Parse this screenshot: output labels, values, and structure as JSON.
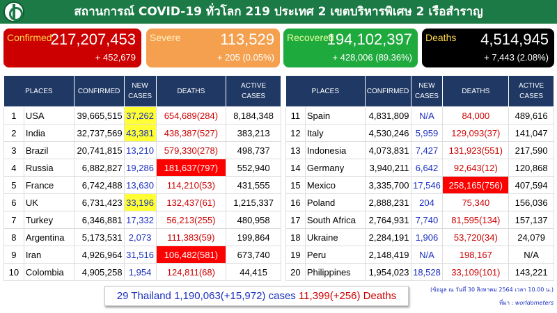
{
  "header": {
    "title": "สถานการณ์ COVID-19 ทั่วโลก 219 ประเทศ 2 เขตบริหารพิเศษ 2 เรือสำราญ"
  },
  "summary": {
    "confirmed": {
      "label": "Confirmed",
      "total": "217,207,453",
      "change": "+ 452,679"
    },
    "severe": {
      "label": "Severe",
      "total": "113,529",
      "change": "+ 205 (0.05%)"
    },
    "recovered": {
      "label": "Recovered",
      "total": "194,102,397",
      "change": "+ 428,006 (89.36%)"
    },
    "deaths": {
      "label": "Deaths",
      "total": "4,514,945",
      "change": "+ 7,443 (2.08%)"
    }
  },
  "table": {
    "headers": {
      "places": "PLACES",
      "confirmed": "CONFIRMED",
      "new_line1": "NEW",
      "new_line2": "CASES",
      "deaths": "DEATHS",
      "active_line1": "ACTIVE",
      "active_line2": "CASES"
    },
    "left": [
      {
        "rank": "1",
        "place": "USA",
        "confirmed": "39,665,515",
        "new": "37,262",
        "deaths": "654,689(284)",
        "active": "8,184,348"
      },
      {
        "rank": "2",
        "place": "India",
        "confirmed": "32,737,569",
        "new": "43,381",
        "deaths": "438,387(527)",
        "active": "383,213"
      },
      {
        "rank": "3",
        "place": "Brazil",
        "confirmed": "20,741,815",
        "new": "13,210",
        "deaths": "579,330(278)",
        "active": "498,737"
      },
      {
        "rank": "4",
        "place": "Russia",
        "confirmed": "6,882,827",
        "new": "19,286",
        "deaths": "181,637(797)",
        "active": "552,940"
      },
      {
        "rank": "5",
        "place": "France",
        "confirmed": "6,742,488",
        "new": "13,630",
        "deaths": "114,210(53)",
        "active": "431,555"
      },
      {
        "rank": "6",
        "place": "UK",
        "confirmed": "6,731,423",
        "new": "33,196",
        "deaths": "132,437(61)",
        "active": "1,215,337"
      },
      {
        "rank": "7",
        "place": "Turkey",
        "confirmed": "6,346,881",
        "new": "17,332",
        "deaths": "56,213(255)",
        "active": "480,958"
      },
      {
        "rank": "8",
        "place": "Argentina",
        "confirmed": "5,173,531",
        "new": "2,073",
        "deaths": "111,383(59)",
        "active": "199,864"
      },
      {
        "rank": "9",
        "place": "Iran",
        "confirmed": "4,926,964",
        "new": "31,516",
        "deaths": "106,482(581)",
        "active": "673,740"
      },
      {
        "rank": "10",
        "place": "Colombia",
        "confirmed": "4,905,258",
        "new": "1,954",
        "deaths": "124,811(68)",
        "active": "44,415"
      }
    ],
    "right": [
      {
        "rank": "11",
        "place": "Spain",
        "confirmed": "4,831,809",
        "new": "N/A",
        "deaths": "84,000",
        "active": "489,616"
      },
      {
        "rank": "12",
        "place": "Italy",
        "confirmed": "4,530,246",
        "new": "5,959",
        "deaths": "129,093(37)",
        "active": "141,047"
      },
      {
        "rank": "13",
        "place": "Indonesia",
        "confirmed": "4,073,831",
        "new": "7,427",
        "deaths": "131,923(551)",
        "active": "217,590"
      },
      {
        "rank": "14",
        "place": "Germany",
        "confirmed": "3,940,211",
        "new": "6,642",
        "deaths": "92,643(12)",
        "active": "120,868"
      },
      {
        "rank": "15",
        "place": "Mexico",
        "confirmed": "3,335,700",
        "new": "17,546",
        "deaths": "258,165(756)",
        "active": "407,594"
      },
      {
        "rank": "16",
        "place": "Poland",
        "confirmed": "2,888,231",
        "new": "204",
        "deaths": "75,340",
        "active": "156,036"
      },
      {
        "rank": "17",
        "place": "South Africa",
        "confirmed": "2,764,931",
        "new": "7,740",
        "deaths": "81,595(134)",
        "active": "157,137"
      },
      {
        "rank": "18",
        "place": "Ukraine",
        "confirmed": "2,284,191",
        "new": "1,906",
        "deaths": "53,720(34)",
        "active": "24,079"
      },
      {
        "rank": "19",
        "place": "Peru",
        "confirmed": "2,148,419",
        "new": "N/A",
        "deaths": "198,167",
        "active": "N/A"
      },
      {
        "rank": "20",
        "place": "Philippines",
        "confirmed": "1,954,023",
        "new": "18,528",
        "deaths": "33,109(101)",
        "active": "143,221"
      }
    ]
  },
  "thailand": {
    "prefix": "29 Thailand 1,190,063(+15,972) cases",
    "deaths": "11,399(+256) Deaths"
  },
  "footer": {
    "note": "(ข้อมูล ณ วันที่ 30 สิงหาคม 2564 เวลา 10.00 น.)",
    "source_label": "ที่มา :",
    "source": "worldometers"
  },
  "colors": {
    "header_green": "#1b7a45",
    "confirmed_red": "#cc0000",
    "severe_orange": "#f4a04f",
    "recovered_green": "#1faa3e",
    "deaths_black": "#000000",
    "table_header_navy": "#1f3864",
    "highlight_yellow": "#ffff33",
    "highlight_red": "#ff0000",
    "new_cases_blue": "#1a2fbf"
  }
}
